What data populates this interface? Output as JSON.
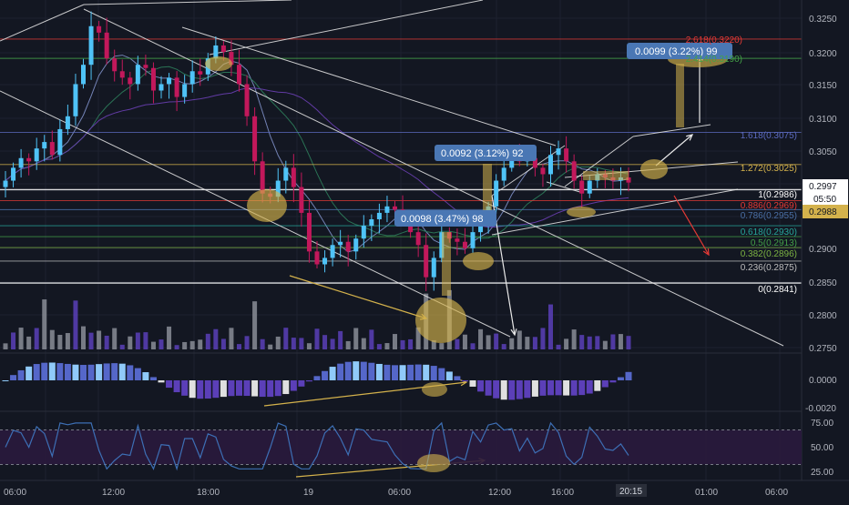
{
  "colors": {
    "background": "#131722",
    "grid": "#1e2230",
    "candle_up": "#4fc3f7",
    "candle_down": "#c2185b",
    "trendline": "#e8e8e8",
    "annotation_gold": "#d4b24c",
    "arrow_red": "#e53935",
    "macd_up_dark": "#5567c9",
    "macd_up_light": "#90caf9",
    "macd_down_dark": "#5b3fb8",
    "macd_down_light": "#e0e0e0",
    "rsi_line": "#3d6fb5",
    "rsi_band": "#2a1a3d",
    "price_badge": "#2f6fd8",
    "callout_bg": "#4a77b4"
  },
  "x_axis": {
    "labels": [
      "06:00",
      "12:00",
      "18:00",
      "19",
      "06:00",
      "12:00",
      "16:00",
      "20:15",
      "01:00",
      "06:00"
    ]
  },
  "price_axis": {
    "ticks": [
      "0.3250",
      "0.3200",
      "0.3150",
      "0.3100",
      "0.3050",
      "0.3000",
      "0.2950",
      "0.2900",
      "0.2850",
      "0.2800",
      "0.2750"
    ],
    "last_price": "0.2997",
    "countdown": "05:50",
    "mark_price": "0.2988"
  },
  "macd_axis": {
    "ticks": [
      "0.0000",
      "-0.0020"
    ]
  },
  "rsi_axis": {
    "ticks": [
      "75.00",
      "50.00",
      "25.00"
    ]
  },
  "fib_levels": [
    {
      "label": "2.618(0.3220)",
      "value": 0.322,
      "color": "#e53935"
    },
    {
      "label": "2.414(0.3190)",
      "value": 0.319,
      "color": "#43a047"
    },
    {
      "label": "1.618(0.3075)",
      "value": 0.3075,
      "color": "#5c6bc0"
    },
    {
      "label": "1.272(0.3025)",
      "value": 0.3025,
      "color": "#d4b24c"
    },
    {
      "label": "1(0.2986)",
      "value": 0.2986,
      "color": "#ffffff"
    },
    {
      "label": "0.886(0.2969)",
      "value": 0.2969,
      "color": "#e53935"
    },
    {
      "label": "0.786(0.2955)",
      "value": 0.2955,
      "color": "#4a6fa5"
    },
    {
      "label": "0.618(0.2930)",
      "value": 0.293,
      "color": "#26a69a"
    },
    {
      "label": "0.5(0.2913)",
      "value": 0.2913,
      "color": "#43a047"
    },
    {
      "label": "0.382(0.2896)",
      "value": 0.2896,
      "color": "#7cb342"
    },
    {
      "label": "0.236(0.2875)",
      "value": 0.2875,
      "color": "#bdbdbd"
    },
    {
      "label": "0(0.2841)",
      "value": 0.2841,
      "color": "#ffffff"
    }
  ],
  "callouts": [
    {
      "text": "0.0099 (3.22%) 99"
    },
    {
      "text": "0.0092 (3.12%) 92"
    },
    {
      "text": "0.0098 (3.47%) 98"
    }
  ],
  "chart_data": {
    "type": "candlestick",
    "symbol_axis": "price",
    "ylim": [
      0.2735,
      0.3275
    ],
    "grid": true,
    "indicators": [
      "volume",
      "macd",
      "rsi"
    ],
    "rsi_levels": [
      70,
      30
    ],
    "close_series": [
      0.3,
      0.302,
      0.3035,
      0.303,
      0.305,
      0.306,
      0.304,
      0.308,
      0.31,
      0.315,
      0.318,
      0.324,
      0.323,
      0.319,
      0.317,
      0.316,
      0.315,
      0.318,
      0.3175,
      0.314,
      0.315,
      0.316,
      0.313,
      0.315,
      0.317,
      0.3165,
      0.319,
      0.321,
      0.32,
      0.318,
      0.315,
      0.31,
      0.303,
      0.298,
      0.2975,
      0.3,
      0.302,
      0.299,
      0.295,
      0.289,
      0.287,
      0.288,
      0.29,
      0.2905,
      0.289,
      0.291,
      0.293,
      0.294,
      0.295,
      0.296,
      0.2955,
      0.294,
      0.292,
      0.29,
      0.285,
      0.288,
      0.292,
      0.291,
      0.2905,
      0.2895,
      0.292,
      0.293,
      0.296,
      0.3,
      0.302,
      0.304,
      0.303,
      0.3035,
      0.302,
      0.301,
      0.304,
      0.305,
      0.303,
      0.3,
      0.298,
      0.3,
      0.301,
      0.3005,
      0.3,
      0.3005,
      0.2997
    ],
    "price_min": 0.2841,
    "price_max": 0.3268
  }
}
